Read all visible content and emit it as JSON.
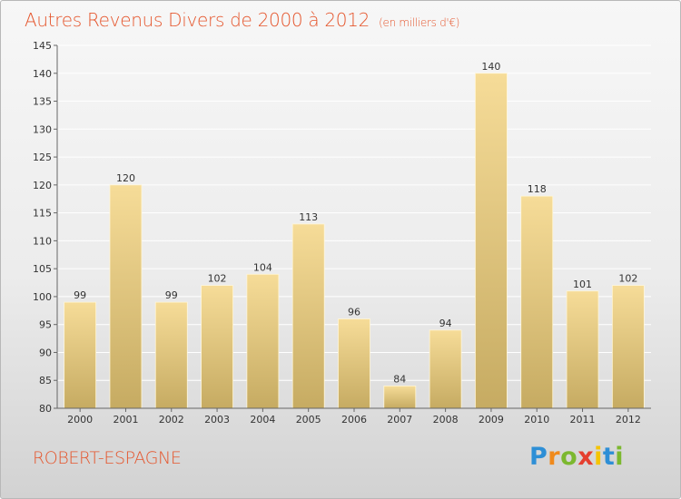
{
  "header": {
    "title": "Autres Revenus Divers de 2000 à 2012",
    "subtitle": "(en milliers d'€)"
  },
  "footer": {
    "town": "ROBERT-ESPAGNE",
    "logo_letters": [
      "P",
      "r",
      "o",
      "x",
      "i",
      "t",
      "i"
    ],
    "logo_colors": [
      "#2e8fd6",
      "#f08a1c",
      "#7cb82f",
      "#e53f2f",
      "#f5c400",
      "#2e8fd6",
      "#7cb82f"
    ]
  },
  "colors": {
    "title": "#e5552c",
    "bar_top": "#f6dc98",
    "bar_bottom": "#c6ab62",
    "grid": "#ffffff",
    "axis": "#666666"
  },
  "chart_data": {
    "type": "bar",
    "categories": [
      "2000",
      "2001",
      "2002",
      "2003",
      "2004",
      "2005",
      "2006",
      "2007",
      "2008",
      "2009",
      "2010",
      "2011",
      "2012"
    ],
    "values": [
      99,
      120,
      99,
      102,
      104,
      113,
      96,
      84,
      94,
      140,
      118,
      101,
      102
    ],
    "ylim": [
      80,
      145
    ],
    "yticks": [
      80,
      85,
      90,
      95,
      100,
      105,
      110,
      115,
      120,
      125,
      130,
      135,
      140,
      145
    ],
    "grid": true,
    "title": "Autres Revenus Divers de 2000 à 2012",
    "subtitle": "(en milliers d'€)"
  }
}
